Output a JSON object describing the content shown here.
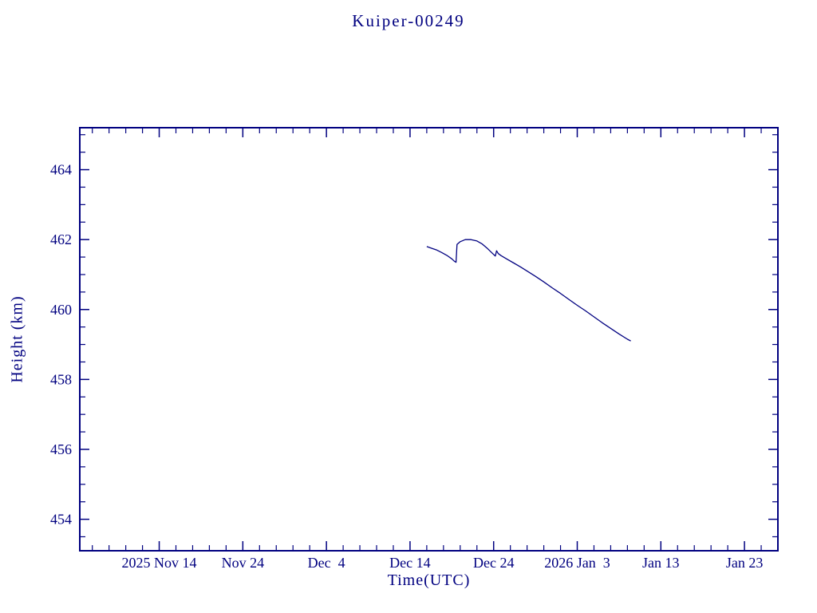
{
  "chart_data": {
    "type": "line",
    "title": "Kuiper-00249",
    "xlabel": "Time(UTC)",
    "ylabel": "Height (km)",
    "line_color": "#000080",
    "background_color": "#ffffff",
    "grid": false,
    "legend": "none",
    "x_unit": "days since 2025 Nov 14 (UTC)",
    "xlim": [
      -9.5,
      74
    ],
    "ylim": [
      453.1,
      465.2
    ],
    "xticks": [
      0,
      10,
      20,
      30,
      40,
      50,
      60,
      70
    ],
    "xticklabels": [
      "2025 Nov 14",
      "Nov 24",
      "Dec  4",
      "Dec 14",
      "Dec 24",
      "2026 Jan  3",
      "Jan 13",
      "Jan 23"
    ],
    "yticks": [
      454,
      456,
      458,
      460,
      462,
      464
    ],
    "yticklabels": [
      "454",
      "456",
      "458",
      "460",
      "462",
      "464"
    ],
    "minor_x_step": 2,
    "minor_y_step": 0.5,
    "series": [
      {
        "name": "height_km",
        "x": [
          32.0,
          32.6,
          33.2,
          33.8,
          34.4,
          35.0,
          35.3,
          35.5,
          35.62,
          36.0,
          36.6,
          37.3,
          38.0,
          38.6,
          39.2,
          39.8,
          40.2,
          40.35,
          40.55,
          40.9,
          41.6,
          42.4,
          43.2,
          44.0,
          45.0,
          46.0,
          47.0,
          48.0,
          49.0,
          50.0,
          51.0,
          52.0,
          53.0,
          54.0,
          55.0,
          56.0,
          56.4
        ],
        "y": [
          461.8,
          461.75,
          461.7,
          461.63,
          461.55,
          461.45,
          461.38,
          461.35,
          461.86,
          461.94,
          462.0,
          462.0,
          461.96,
          461.88,
          461.76,
          461.62,
          461.53,
          461.68,
          461.6,
          461.54,
          461.44,
          461.33,
          461.22,
          461.1,
          460.95,
          460.79,
          460.62,
          460.46,
          460.29,
          460.12,
          459.96,
          459.79,
          459.62,
          459.46,
          459.3,
          459.15,
          459.1
        ]
      }
    ]
  }
}
